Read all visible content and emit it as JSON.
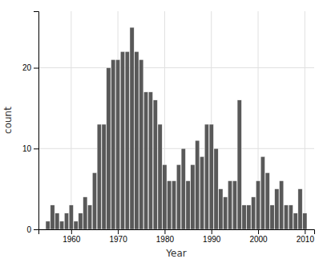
{
  "chart_data": {
    "type": "bar",
    "x": [
      1955,
      1956,
      1957,
      1958,
      1959,
      1960,
      1961,
      1962,
      1963,
      1964,
      1965,
      1966,
      1967,
      1968,
      1969,
      1970,
      1971,
      1972,
      1973,
      1974,
      1975,
      1976,
      1977,
      1978,
      1979,
      1980,
      1981,
      1982,
      1983,
      1984,
      1985,
      1986,
      1987,
      1988,
      1989,
      1990,
      1991,
      1992,
      1993,
      1994,
      1995,
      1996,
      1997,
      1998,
      1999,
      2000,
      2001,
      2002,
      2003,
      2004,
      2005,
      2006,
      2007,
      2008,
      2009,
      2010
    ],
    "values": [
      1,
      3,
      2,
      1,
      2,
      3,
      1,
      2,
      4,
      3,
      7,
      13,
      13,
      20,
      21,
      21,
      22,
      22,
      25,
      22,
      21,
      17,
      17,
      16,
      13,
      8,
      6,
      6,
      8,
      10,
      6,
      8,
      11,
      9,
      13,
      13,
      10,
      5,
      4,
      6,
      6,
      16,
      3,
      3,
      4,
      6,
      9,
      7,
      3,
      5,
      6,
      3,
      3,
      2,
      5,
      2
    ],
    "color": "#595959",
    "xlabel": "Year",
    "ylabel": "count",
    "xlim": [
      1953,
      2012
    ],
    "ylim": [
      0,
      27
    ],
    "xticks": [
      1960,
      1970,
      1980,
      1990,
      2000,
      2010
    ],
    "yticks": [
      0,
      10,
      20
    ],
    "grid": true
  }
}
